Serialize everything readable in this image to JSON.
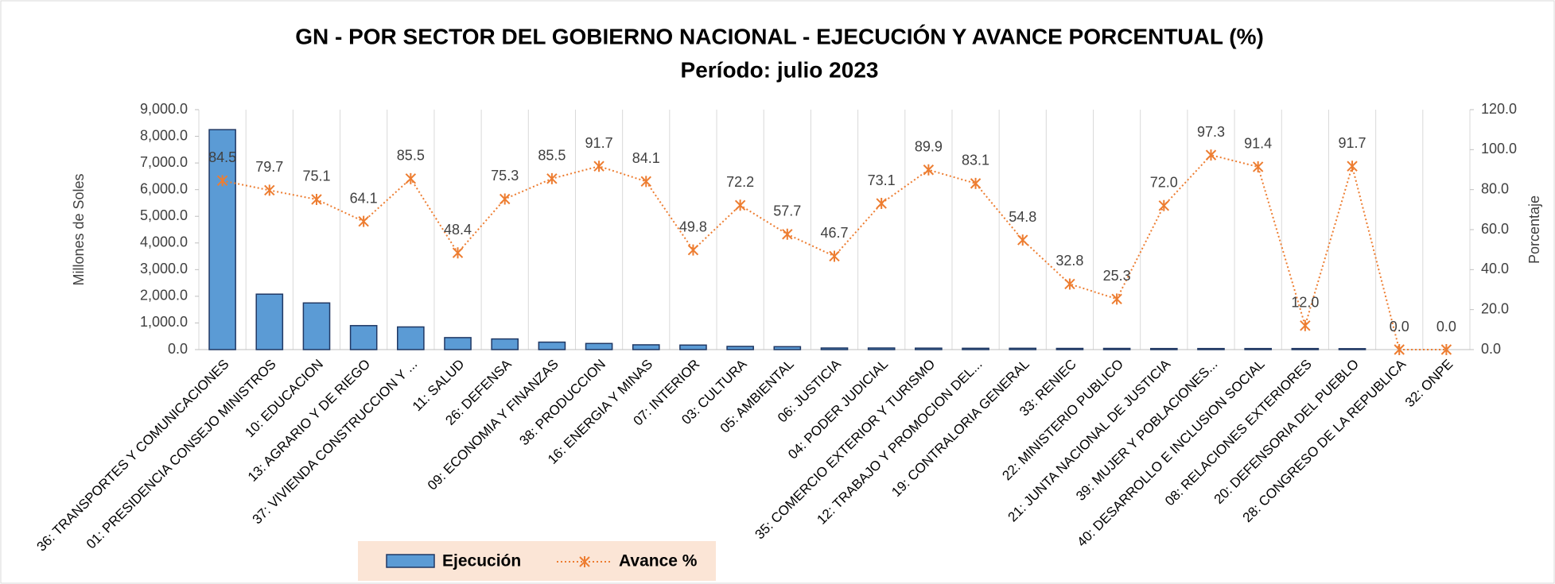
{
  "chart_data": {
    "type": "bar-line",
    "title": "GN - POR SECTOR DEL GOBIERNO NACIONAL - EJECUCIÓN Y AVANCE PORCENTUAL (%)",
    "subtitle": "Período: julio 2023",
    "y_label": "Millones de Soles",
    "y2_label": "Porcentaje",
    "categories": [
      "36: TRANSPORTES Y COMUNICACIONES",
      "01: PRESIDENCIA CONSEJO MINISTROS",
      "10: EDUCACION",
      "13: AGRARIO Y DE RIEGO",
      "37: VIVIENDA CONSTRUCCION Y ...",
      "11: SALUD",
      "26: DEFENSA",
      "09: ECONOMIA Y FINANZAS",
      "38: PRODUCCION",
      "16: ENERGIA Y MINAS",
      "07: INTERIOR",
      "03: CULTURA",
      "05: AMBIENTAL",
      "06: JUSTICIA",
      "04: PODER JUDICIAL",
      "35: COMERCIO EXTERIOR Y TURISMO",
      "12: TRABAJO Y PROMOCION DEL...",
      "19: CONTRALORIA GENERAL",
      "33: RENIEC",
      "22: MINISTERIO PUBLICO",
      "21: JUNTA NACIONAL DE JUSTICIA",
      "39: MUJER Y POBLACIONES...",
      "40: DESARROLLO E INCLUSION SOCIAL",
      "08: RELACIONES EXTERIORES",
      "20: DEFENSORIA DEL PUEBLO",
      "28: CONGRESO DE LA REPUBLICA",
      "32: ONPE"
    ],
    "series": [
      {
        "name": "Ejecución",
        "type": "bar",
        "color": "#5b9bd5",
        "values": [
          8250,
          2080,
          1750,
          900,
          850,
          450,
          400,
          280,
          230,
          180,
          170,
          120,
          110,
          60,
          60,
          55,
          50,
          50,
          45,
          45,
          40,
          40,
          40,
          40,
          35,
          0,
          0
        ]
      },
      {
        "name": "Avance %",
        "type": "line",
        "axis": "y2",
        "color": "#ed7d31",
        "values": [
          84.5,
          79.7,
          75.1,
          64.1,
          85.5,
          48.4,
          75.3,
          85.5,
          91.7,
          84.1,
          49.8,
          72.2,
          57.7,
          46.7,
          73.1,
          89.9,
          83.1,
          54.8,
          32.8,
          25.3,
          72.0,
          97.3,
          91.4,
          12.0,
          91.7,
          0,
          0
        ],
        "value_labels": [
          "84.5",
          "79.7",
          "75.1",
          "64.1",
          "85.5",
          "48.4",
          "75.3",
          "85.5",
          "91.7",
          "84.1",
          "49.8",
          "72.2",
          "57.7",
          "46.7",
          "73.1",
          "89.9",
          "83.1",
          "54.8",
          "32.8",
          "25.3",
          "72.0",
          "97.3",
          "91.4",
          "12.0",
          "91.7",
          "0.0",
          "0.0"
        ]
      }
    ],
    "ylim": [
      0,
      9000
    ],
    "yticks": [
      {
        "value": 0,
        "label": "0.0"
      },
      {
        "value": 1000,
        "label": "1,000.0"
      },
      {
        "value": 2000,
        "label": "2,000.0"
      },
      {
        "value": 3000,
        "label": "3,000.0"
      },
      {
        "value": 4000,
        "label": "4,000.0"
      },
      {
        "value": 5000,
        "label": "5,000.0"
      },
      {
        "value": 6000,
        "label": "6,000.0"
      },
      {
        "value": 7000,
        "label": "7,000.0"
      },
      {
        "value": 8000,
        "label": "8,000.0"
      },
      {
        "value": 9000,
        "label": "9,000.0"
      }
    ],
    "y2lim": [
      0,
      120
    ],
    "y2ticks": [
      {
        "value": 0,
        "label": "0.0"
      },
      {
        "value": 20,
        "label": "20.0"
      },
      {
        "value": 40,
        "label": "40.0"
      },
      {
        "value": 60,
        "label": "60.0"
      },
      {
        "value": 80,
        "label": "80.0"
      },
      {
        "value": 100,
        "label": "100.0"
      },
      {
        "value": 120,
        "label": "120.0"
      }
    ],
    "legend": "bottom"
  }
}
